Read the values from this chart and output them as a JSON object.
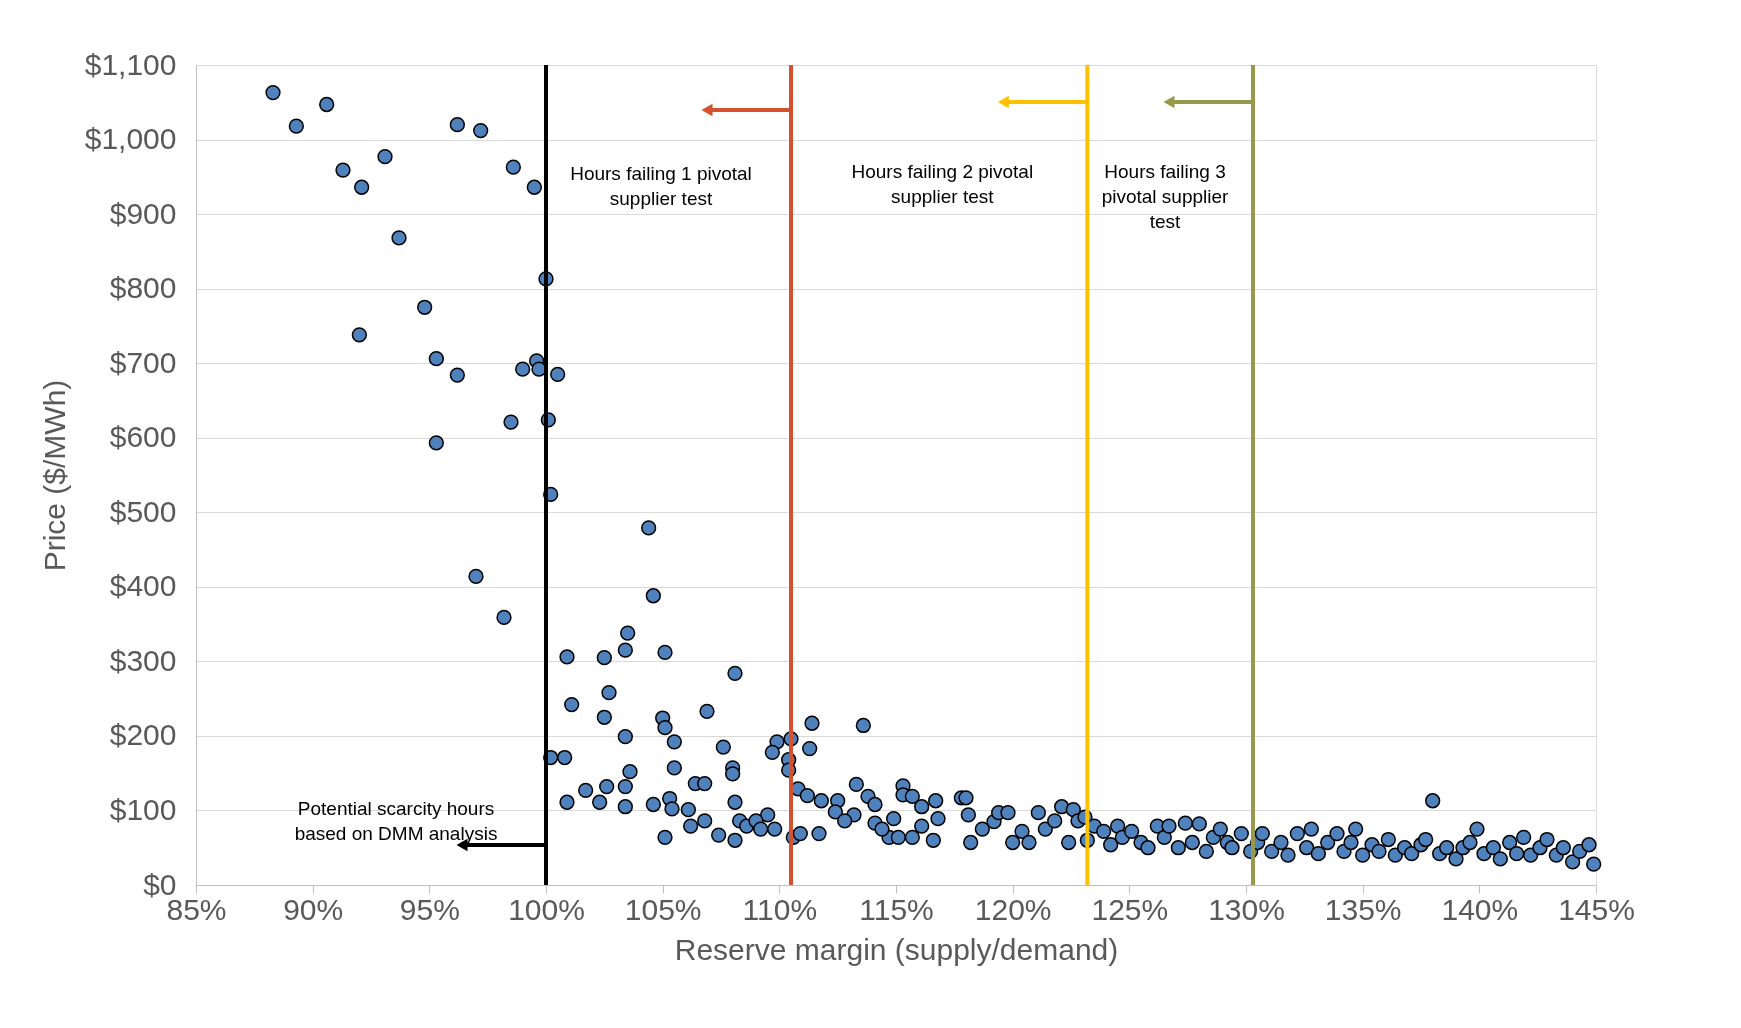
{
  "chart_data": {
    "type": "scatter",
    "xlabel": "Reserve margin (supply/demand)",
    "ylabel": "Price ($/MWh)",
    "marker": "circle",
    "grid": "y",
    "xlim": [
      85,
      145
    ],
    "xticks": [
      {
        "value": 85,
        "label": "85%"
      },
      {
        "value": 90,
        "label": "90%"
      },
      {
        "value": 95,
        "label": "95%"
      },
      {
        "value": 100,
        "label": "100%"
      },
      {
        "value": 105,
        "label": "105%"
      },
      {
        "value": 110,
        "label": "110%"
      },
      {
        "value": 115,
        "label": "115%"
      },
      {
        "value": 120,
        "label": "120%"
      },
      {
        "value": 125,
        "label": "125%"
      },
      {
        "value": 130,
        "label": "130%"
      },
      {
        "value": 135,
        "label": "135%"
      },
      {
        "value": 140,
        "label": "140%"
      },
      {
        "value": 145,
        "label": "145%"
      }
    ],
    "ylim": [
      0,
      1100
    ],
    "yticks": [
      {
        "value": 0,
        "label": "$0"
      },
      {
        "value": 100,
        "label": "$100"
      },
      {
        "value": 200,
        "label": "$200"
      },
      {
        "value": 300,
        "label": "$300"
      },
      {
        "value": 400,
        "label": "$400"
      },
      {
        "value": 500,
        "label": "$500"
      },
      {
        "value": 600,
        "label": "$600"
      },
      {
        "value": 700,
        "label": "$700"
      },
      {
        "value": 800,
        "label": "$800"
      },
      {
        "value": 900,
        "label": "$900"
      },
      {
        "value": 1000,
        "label": "$1,000"
      },
      {
        "value": 1100,
        "label": "$1,100"
      }
    ],
    "ref_lines": [
      {
        "axis": "x",
        "value": 100,
        "label": "Potential scarcity hours based on DMM analysis",
        "color": "#000000"
      },
      {
        "axis": "x",
        "value": 110.5,
        "label": "Hours failing 1 pivotal supplier test",
        "color": "#d5502c"
      },
      {
        "axis": "x",
        "value": 123.2,
        "label": "Hours failing 2 pivotal supplier test",
        "color": "#ffc000"
      },
      {
        "axis": "x",
        "value": 130.3,
        "label": "Hours failing 3 pivotal supplier test",
        "color": "#969a4a"
      }
    ],
    "series": [
      {
        "color": "#4f81bd",
        "x": [
          88.3,
          89.3,
          90.6,
          91.3,
          92.1,
          93.1,
          93.7,
          92.0,
          94.8,
          95.3,
          96.2,
          95.3,
          96.2,
          97.2,
          98.6,
          99.5,
          100.0,
          99.6,
          99.0,
          99.7,
          100.5,
          98.5,
          100.1,
          100.2,
          97.0,
          98.2,
          104.4,
          104.6,
          103.5,
          103.4,
          105.1,
          100.9,
          102.5,
          108.1,
          101.1,
          102.7,
          102.5,
          105.0,
          105.1,
          106.9,
          103.4,
          105.5,
          107.6,
          100.2,
          100.8,
          111.4,
          111.3,
          113.6,
          109.9,
          110.5,
          109.7,
          110.4,
          103.6,
          105.5,
          108.0,
          108.0,
          101.7,
          102.6,
          103.4,
          100.9,
          102.3,
          103.4,
          104.6,
          105.3,
          105.4,
          106.4,
          106.8,
          106.1,
          105.1,
          107.4,
          108.1,
          108.1,
          108.3,
          109.5,
          110.4,
          110.8,
          111.2,
          111.8,
          112.5,
          112.4,
          113.2,
          113.8,
          113.3,
          114.1,
          114.9,
          114.7,
          106.8,
          106.2,
          108.6,
          109.0,
          109.2,
          109.8,
          110.6,
          110.9,
          111.7,
          112.8,
          114.1,
          114.4,
          115.1,
          115.7,
          116.1,
          115.3,
          115.3,
          115.7,
          116.1,
          116.7,
          116.8,
          116.6,
          117.8,
          118.0,
          118.1,
          118.2,
          118.7,
          119.2,
          119.4,
          119.8,
          120.0,
          120.4,
          120.7,
          121.1,
          121.4,
          121.8,
          122.1,
          122.4,
          122.6,
          122.8,
          123.1,
          123.2,
          123.5,
          123.9,
          124.2,
          124.5,
          124.7,
          125.1,
          125.5,
          125.8,
          126.2,
          126.5,
          126.7,
          127.1,
          127.4,
          127.7,
          128.0,
          128.3,
          128.6,
          128.9,
          129.2,
          129.4,
          129.8,
          130.2,
          130.5,
          130.7,
          131.1,
          131.5,
          131.8,
          132.2,
          132.6,
          132.8,
          133.1,
          133.5,
          133.9,
          134.2,
          134.5,
          134.7,
          135.0,
          135.4,
          135.7,
          136.1,
          136.4,
          136.8,
          137.1,
          137.5,
          137.7,
          138.0,
          138.3,
          138.6,
          139.0,
          139.3,
          139.6,
          139.9,
          140.2,
          140.6,
          140.9,
          141.3,
          141.6,
          141.9,
          142.2,
          142.6,
          142.9,
          143.3,
          143.6,
          144.0,
          144.3,
          144.7,
          144.9
        ],
        "values": [
          1063,
          1018,
          1047,
          959,
          936,
          977,
          868,
          738,
          775,
          706,
          684,
          593,
          1020,
          1012,
          963,
          936,
          813,
          703,
          692,
          692,
          685,
          621,
          624,
          524,
          414,
          359,
          479,
          388,
          338,
          315,
          312,
          306,
          305,
          284,
          242,
          258,
          225,
          224,
          211,
          233,
          199,
          192,
          185,
          171,
          171,
          217,
          183,
          214,
          192,
          196,
          178,
          168,
          152,
          157,
          157,
          149,
          127,
          132,
          132,
          111,
          111,
          105,
          108,
          116,
          102,
          136,
          136,
          101,
          64,
          67,
          60,
          111,
          86,
          94,
          154,
          129,
          120,
          113,
          113,
          98,
          94,
          119,
          135,
          108,
          89,
          64,
          86,
          79,
          79,
          86,
          75,
          75,
          64,
          69,
          69,
          86,
          83,
          75,
          64,
          64,
          79,
          133,
          121,
          119,
          105,
          113,
          89,
          60,
          117,
          117,
          94,
          57,
          75,
          85,
          97,
          97,
          57,
          72,
          57,
          97,
          75,
          86,
          105,
          57,
          101,
          86,
          91,
          60,
          79,
          72,
          54,
          79,
          64,
          72,
          57,
          50,
          79,
          64,
          79,
          50,
          83,
          57,
          82,
          45,
          64,
          75,
          57,
          50,
          69,
          45,
          57,
          69,
          45,
          57,
          40,
          69,
          50,
          75,
          42,
          57,
          69,
          45,
          57,
          75,
          40,
          54,
          45,
          61,
          40,
          50,
          42,
          54,
          61,
          113,
          42,
          50,
          35,
          50,
          57,
          75,
          42,
          50,
          35,
          57,
          42,
          64,
          40,
          50,
          61,
          40,
          50,
          31,
          45,
          54,
          28
        ]
      }
    ]
  }
}
